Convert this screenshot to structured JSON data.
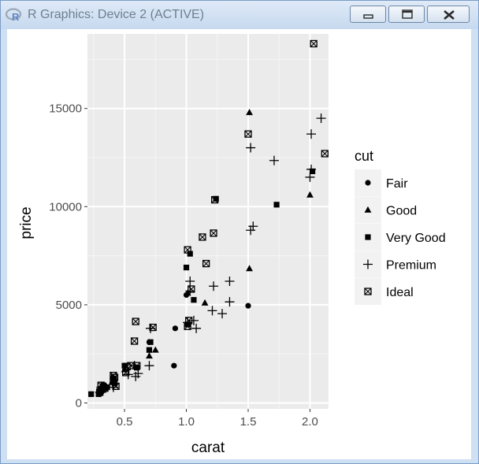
{
  "window": {
    "title": "R Graphics: Device 2 (ACTIVE)",
    "app_icon": "r-logo-icon",
    "controls": {
      "minimize_icon": "minimize-icon",
      "maximize_icon": "maximize-icon",
      "close_icon": "close-icon"
    }
  },
  "chart_data": {
    "type": "scatter",
    "xlabel": "carat",
    "ylabel": "price",
    "xlim": [
      0.2,
      2.15
    ],
    "ylim": [
      -300,
      18800
    ],
    "xticks": [
      0.5,
      1.0,
      1.5,
      2.0
    ],
    "xtick_labels": [
      "0.5",
      "1.0",
      "1.5",
      "2.0"
    ],
    "yticks": [
      0,
      5000,
      10000,
      15000
    ],
    "ytick_labels": [
      "0",
      "5000",
      "10000",
      "15000"
    ],
    "grid": true,
    "panel_color": "#ebebeb",
    "legend": {
      "title": "cut",
      "placement": "right",
      "entries": [
        "Fair",
        "Good",
        "Very Good",
        "Premium",
        "Ideal"
      ]
    },
    "series": [
      {
        "name": "Fair",
        "shape": "circle",
        "points": [
          [
            0.9,
            1900
          ],
          [
            0.91,
            3800
          ],
          [
            1.0,
            5500
          ],
          [
            1.5,
            4950
          ],
          [
            0.7,
            3100
          ]
        ]
      },
      {
        "name": "Good",
        "shape": "triangle",
        "points": [
          [
            1.51,
            14800
          ],
          [
            2.0,
            10600
          ],
          [
            1.51,
            6850
          ],
          [
            1.01,
            5600
          ],
          [
            1.15,
            5100
          ],
          [
            0.75,
            2700
          ],
          [
            0.7,
            2400
          ],
          [
            0.5,
            1700
          ],
          [
            0.4,
            1100
          ],
          [
            0.3,
            700
          ]
        ]
      },
      {
        "name": "Very Good",
        "shape": "square",
        "points": [
          [
            1.73,
            10100
          ],
          [
            2.02,
            11800
          ],
          [
            1.24,
            10400
          ],
          [
            1.0,
            6900
          ],
          [
            1.03,
            7600
          ],
          [
            1.06,
            5250
          ],
          [
            1.01,
            4000
          ],
          [
            0.71,
            3100
          ],
          [
            0.7,
            2700
          ],
          [
            0.5,
            1900
          ],
          [
            0.6,
            1800
          ],
          [
            0.33,
            900
          ],
          [
            0.31,
            700
          ],
          [
            0.3,
            500
          ],
          [
            0.29,
            450
          ],
          [
            0.23,
            450
          ],
          [
            0.41,
            1250
          ],
          [
            0.42,
            1000
          ],
          [
            0.36,
            800
          ]
        ]
      },
      {
        "name": "Premium",
        "shape": "plus",
        "points": [
          [
            2.09,
            14500
          ],
          [
            2.01,
            13700
          ],
          [
            1.52,
            13000
          ],
          [
            1.71,
            12350
          ],
          [
            2.01,
            11900
          ],
          [
            2.0,
            11500
          ],
          [
            1.54,
            9000
          ],
          [
            1.52,
            8800
          ],
          [
            1.35,
            6200
          ],
          [
            1.22,
            5950
          ],
          [
            1.03,
            6200
          ],
          [
            1.03,
            5700
          ],
          [
            1.35,
            5150
          ],
          [
            1.21,
            4700
          ],
          [
            1.29,
            4550
          ],
          [
            1.06,
            4200
          ],
          [
            1.01,
            4100
          ],
          [
            1.08,
            3800
          ],
          [
            0.71,
            3800
          ],
          [
            0.7,
            1900
          ],
          [
            0.61,
            1500
          ],
          [
            0.59,
            1350
          ],
          [
            0.53,
            1450
          ],
          [
            0.58,
            1900
          ],
          [
            0.31,
            800
          ],
          [
            0.3,
            550
          ],
          [
            0.41,
            800
          ],
          [
            0.33,
            700
          ]
        ]
      },
      {
        "name": "Ideal",
        "shape": "boxed-cross",
        "points": [
          [
            2.03,
            18300
          ],
          [
            2.12,
            12700
          ],
          [
            1.5,
            13700
          ],
          [
            1.23,
            10350
          ],
          [
            1.22,
            8650
          ],
          [
            1.13,
            8450
          ],
          [
            1.01,
            7800
          ],
          [
            1.16,
            7100
          ],
          [
            1.04,
            5800
          ],
          [
            1.02,
            4200
          ],
          [
            1.01,
            3900
          ],
          [
            0.73,
            3850
          ],
          [
            0.59,
            4150
          ],
          [
            0.58,
            3150
          ],
          [
            0.6,
            1900
          ],
          [
            0.52,
            1850
          ],
          [
            0.55,
            1900
          ],
          [
            0.51,
            1550
          ],
          [
            0.41,
            1400
          ],
          [
            0.42,
            1300
          ],
          [
            0.41,
            1100
          ],
          [
            0.43,
            850
          ],
          [
            0.31,
            900
          ],
          [
            0.33,
            800
          ],
          [
            0.32,
            700
          ],
          [
            0.3,
            550
          ],
          [
            0.34,
            750
          ]
        ]
      }
    ]
  }
}
